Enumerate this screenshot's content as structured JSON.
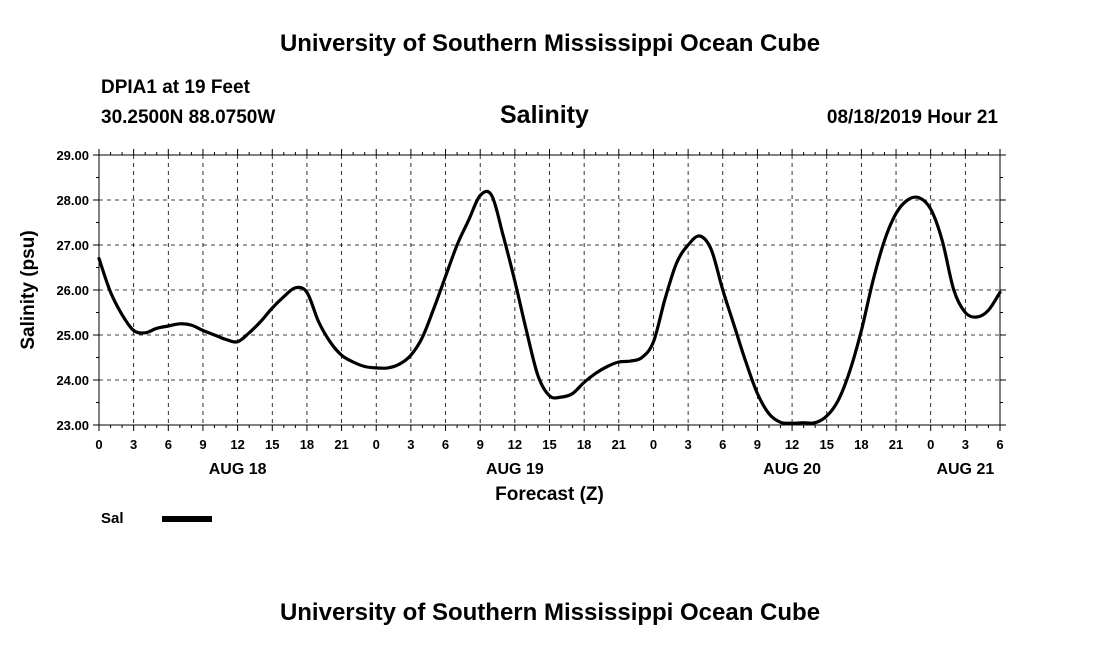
{
  "header": {
    "title": "University of Southern Mississippi Ocean Cube",
    "station": "DPIA1 at 19 Feet",
    "coords": "30.2500N 88.0750W",
    "parameter": "Salinity",
    "datetime": "08/18/2019 Hour 21"
  },
  "footer": {
    "title": "University of Southern Mississippi Ocean Cube"
  },
  "legend": {
    "label": "Sal",
    "color": "#000000"
  },
  "chart_data": {
    "type": "line",
    "title": "Salinity",
    "xlabel": "Forecast (Z)",
    "ylabel": "Salinity (psu)",
    "ylim": [
      23.0,
      29.0
    ],
    "yticks": [
      "23.00",
      "24.00",
      "25.00",
      "26.00",
      "27.00",
      "28.00",
      "29.00"
    ],
    "xlim_hours": [
      0,
      78
    ],
    "xtick_step_hours": 3,
    "xtick_labels": [
      "0",
      "3",
      "6",
      "9",
      "12",
      "15",
      "18",
      "21",
      "0",
      "3",
      "6",
      "9",
      "12",
      "15",
      "18",
      "21",
      "0",
      "3",
      "6",
      "9",
      "12",
      "15",
      "18",
      "21",
      "0",
      "3",
      "6"
    ],
    "day_labels": [
      {
        "label": "AUG 18",
        "hour": 12
      },
      {
        "label": "AUG 19",
        "hour": 36
      },
      {
        "label": "AUG 20",
        "hour": 60
      },
      {
        "label": "AUG 21",
        "hour": 75
      }
    ],
    "grid": true,
    "series": [
      {
        "name": "Sal",
        "color": "#000000",
        "x": [
          0,
          1,
          2,
          3,
          4,
          5,
          6,
          7,
          8,
          9,
          10,
          11,
          12,
          13,
          14,
          15,
          16,
          17,
          18,
          19,
          20,
          21,
          22,
          23,
          24,
          25,
          26,
          27,
          28,
          29,
          30,
          31,
          32,
          33,
          34,
          35,
          36,
          37,
          38,
          39,
          40,
          41,
          42,
          43,
          44,
          45,
          46,
          47,
          48,
          49,
          50,
          51,
          52,
          53,
          54,
          55,
          56,
          57,
          58,
          59,
          60,
          61,
          62,
          63,
          64,
          65,
          66,
          67,
          68,
          69,
          70,
          71,
          72,
          73,
          74,
          75,
          76,
          77,
          78
        ],
        "values": [
          26.7,
          25.95,
          25.45,
          25.1,
          25.05,
          25.15,
          25.2,
          25.25,
          25.22,
          25.1,
          25.0,
          24.9,
          24.85,
          25.05,
          25.3,
          25.6,
          25.85,
          26.05,
          25.95,
          25.3,
          24.85,
          24.55,
          24.4,
          24.3,
          24.27,
          24.27,
          24.35,
          24.55,
          24.95,
          25.6,
          26.3,
          27.0,
          27.55,
          28.1,
          28.1,
          27.2,
          26.2,
          25.1,
          24.1,
          23.65,
          23.62,
          23.7,
          23.95,
          24.15,
          24.3,
          24.4,
          24.42,
          24.5,
          24.85,
          25.8,
          26.6,
          27.0,
          27.2,
          26.9,
          26.0,
          25.2,
          24.4,
          23.7,
          23.25,
          23.06,
          23.04,
          23.05,
          23.05,
          23.2,
          23.55,
          24.2,
          25.1,
          26.2,
          27.1,
          27.7,
          28.0,
          28.05,
          27.8,
          27.1,
          26.0,
          25.5,
          25.4,
          25.55,
          25.95
        ]
      }
    ]
  }
}
